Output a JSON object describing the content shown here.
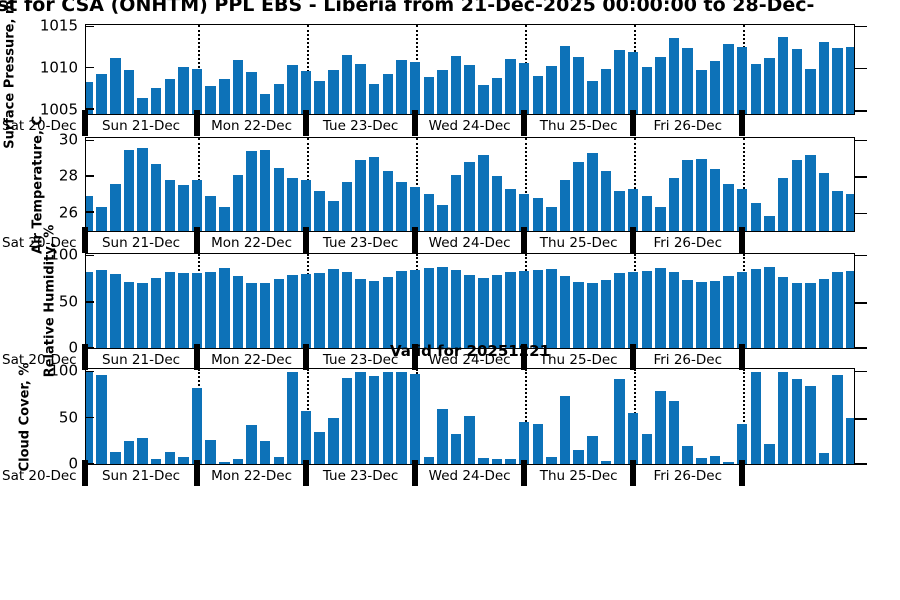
{
  "title": "st for CSA (ONHTM) PPL EBS  - Liberia from 21-Dec-2025 00:00:00 to 28-Dec-",
  "valid_label": "Valid for 20251221",
  "bar_color": "#0d72b8",
  "x_axis": {
    "pre_label": "Sat 20-Dec",
    "day_labels": [
      "Sun 21-Dec",
      "Mon 22-Dec",
      "Tue 23-Dec",
      "Wed 24-Dec",
      "Thu 25-Dec",
      "Fri 26-Dec",
      ""
    ]
  },
  "chart_data": [
    {
      "type": "bar",
      "ylabel": "Surface Pressure, mb",
      "yticks": [
        1005,
        1010,
        1015
      ],
      "ylim": [
        1004.4,
        1015.2
      ],
      "x_step_hours": 3,
      "values": [
        1008.3,
        1009.3,
        1011.2,
        1009.7,
        1006.3,
        1007.5,
        1008.7,
        1010.1,
        1009.9,
        1007.8,
        1008.7,
        1010.9,
        1009.5,
        1006.8,
        1008.0,
        1010.3,
        1009.6,
        1008.4,
        1009.7,
        1011.6,
        1010.5,
        1008.1,
        1009.2,
        1010.9,
        1010.7,
        1008.9,
        1009.7,
        1011.4,
        1010.4,
        1007.9,
        1008.8,
        1011.1,
        1010.6,
        1009.0,
        1010.2,
        1012.6,
        1011.3,
        1008.4,
        1009.9,
        1012.2,
        1011.9,
        1010.1,
        1011.3,
        1013.6,
        1012.4,
        1009.8,
        1010.8,
        1012.9,
        1012.5,
        1010.5,
        1011.2,
        1013.7,
        1012.3,
        1009.9,
        1013.1,
        1012.4,
        1012.5
      ]
    },
    {
      "type": "bar",
      "ylabel": "Air Temperature, C",
      "yticks": [
        26,
        28,
        30
      ],
      "ylim": [
        24.95,
        30.15
      ],
      "x_step_hours": 3,
      "values": [
        26.9,
        26.3,
        27.6,
        29.5,
        29.6,
        28.7,
        27.8,
        27.5,
        27.8,
        26.9,
        26.3,
        28.1,
        29.4,
        29.5,
        28.5,
        27.9,
        27.8,
        27.2,
        26.6,
        27.7,
        28.9,
        29.1,
        28.3,
        27.7,
        27.4,
        27.0,
        26.4,
        28.1,
        28.8,
        29.2,
        28.0,
        27.3,
        27.0,
        26.8,
        26.3,
        27.8,
        28.8,
        29.3,
        28.3,
        27.2,
        27.3,
        26.9,
        26.3,
        27.9,
        28.9,
        29.0,
        28.4,
        27.6,
        27.3,
        26.5,
        25.8,
        27.9,
        28.9,
        29.2,
        28.2,
        27.2,
        27.0
      ]
    },
    {
      "type": "bar",
      "ylabel": "Relative Humidity, %",
      "yticks": [
        0,
        50,
        100
      ],
      "ylim": [
        0,
        102
      ],
      "x_step_hours": 3,
      "values": [
        83,
        85,
        80,
        72,
        70,
        76,
        82,
        81,
        81,
        83,
        87,
        78,
        71,
        70,
        75,
        79,
        80,
        81,
        86,
        83,
        75,
        73,
        77,
        84,
        85,
        87,
        88,
        85,
        79,
        76,
        79,
        82,
        84,
        85,
        86,
        78,
        72,
        70,
        74,
        81,
        82,
        84,
        87,
        83,
        74,
        72,
        73,
        78,
        82,
        86,
        88,
        77,
        71,
        70,
        75,
        83,
        84
      ]
    },
    {
      "type": "bar",
      "ylabel": "Cloud Cover, %",
      "yticks": [
        0,
        50,
        100
      ],
      "ylim": [
        0,
        103
      ],
      "x_step_hours": 3,
      "values": [
        100,
        97,
        13,
        25,
        28,
        5,
        13,
        8,
        82,
        26,
        2,
        5,
        42,
        25,
        8,
        100,
        57,
        35,
        50,
        93,
        100,
        95,
        100,
        100,
        98,
        8,
        60,
        32,
        52,
        6,
        5,
        5,
        45,
        43,
        8,
        74,
        15,
        30,
        3,
        92,
        55,
        32,
        79,
        68,
        20,
        6,
        9,
        2,
        43,
        100,
        22,
        100,
        92,
        85,
        12,
        97,
        50
      ]
    }
  ]
}
